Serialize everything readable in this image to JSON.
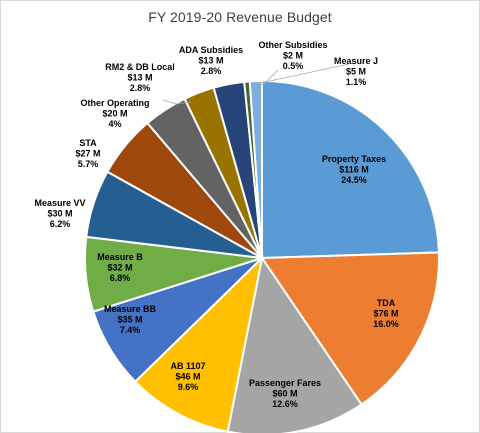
{
  "chart_data": {
    "type": "pie",
    "title": "FY 2019-20 Revenue  Budget",
    "start_angle_deg": 0,
    "direction": "clockwise",
    "slices": [
      {
        "name": "Property Taxes",
        "amount": "$116 M",
        "percent": "24.5%",
        "value": 24.5,
        "color": "#5B9BD5",
        "label_color": "#000000"
      },
      {
        "name": "TDA",
        "amount": "$76 M",
        "percent": "16.0%",
        "value": 16.0,
        "color": "#ED7D31",
        "label_color": "#000000"
      },
      {
        "name": "Passenger Fares",
        "amount": "$60 M",
        "percent": "12.6%",
        "value": 12.6,
        "color": "#A5A5A5",
        "label_color": "#000000"
      },
      {
        "name": "AB 1107",
        "amount": "$46 M",
        "percent": "9.6%",
        "value": 9.6,
        "color": "#FFC000",
        "label_color": "#000000"
      },
      {
        "name": "Measure BB",
        "amount": "$35 M",
        "percent": "7.4%",
        "value": 7.4,
        "color": "#4472C4",
        "label_color": "#000000"
      },
      {
        "name": "Measure B",
        "amount": "$32 M",
        "percent": "6.8%",
        "value": 6.8,
        "color": "#70AD47",
        "label_color": "#000000"
      },
      {
        "name": "Measure VV",
        "amount": "$30 M",
        "percent": "6.2%",
        "value": 6.2,
        "color": "#255E91",
        "label_color": "#000000"
      },
      {
        "name": "STA",
        "amount": "$27 M",
        "percent": "5.7%",
        "value": 5.7,
        "color": "#9E480E",
        "label_color": "#000000"
      },
      {
        "name": "Other Operating",
        "amount": "$20 M",
        "percent": "4%",
        "value": 4.0,
        "color": "#636363",
        "label_color": "#000000"
      },
      {
        "name": "RM2 & DB Local",
        "amount": "$13 M",
        "percent": "2.8%",
        "value": 2.8,
        "color": "#997300",
        "label_color": "#000000"
      },
      {
        "name": "ADA Subsidies",
        "amount": "$13 M",
        "percent": "2.8%",
        "value": 2.8,
        "color": "#264478",
        "label_color": "#000000"
      },
      {
        "name": "Other Subsidies",
        "amount": "$2 M",
        "percent": "0.5%",
        "value": 0.5,
        "color": "#43682B",
        "label_color": "#000000"
      },
      {
        "name": "Measure J",
        "amount": "$5 M",
        "percent": "1.1%",
        "value": 1.1,
        "color": "#7CAFDD",
        "label_color": "#000000"
      }
    ],
    "legend": "none",
    "data_labels": "name, value, percent"
  }
}
